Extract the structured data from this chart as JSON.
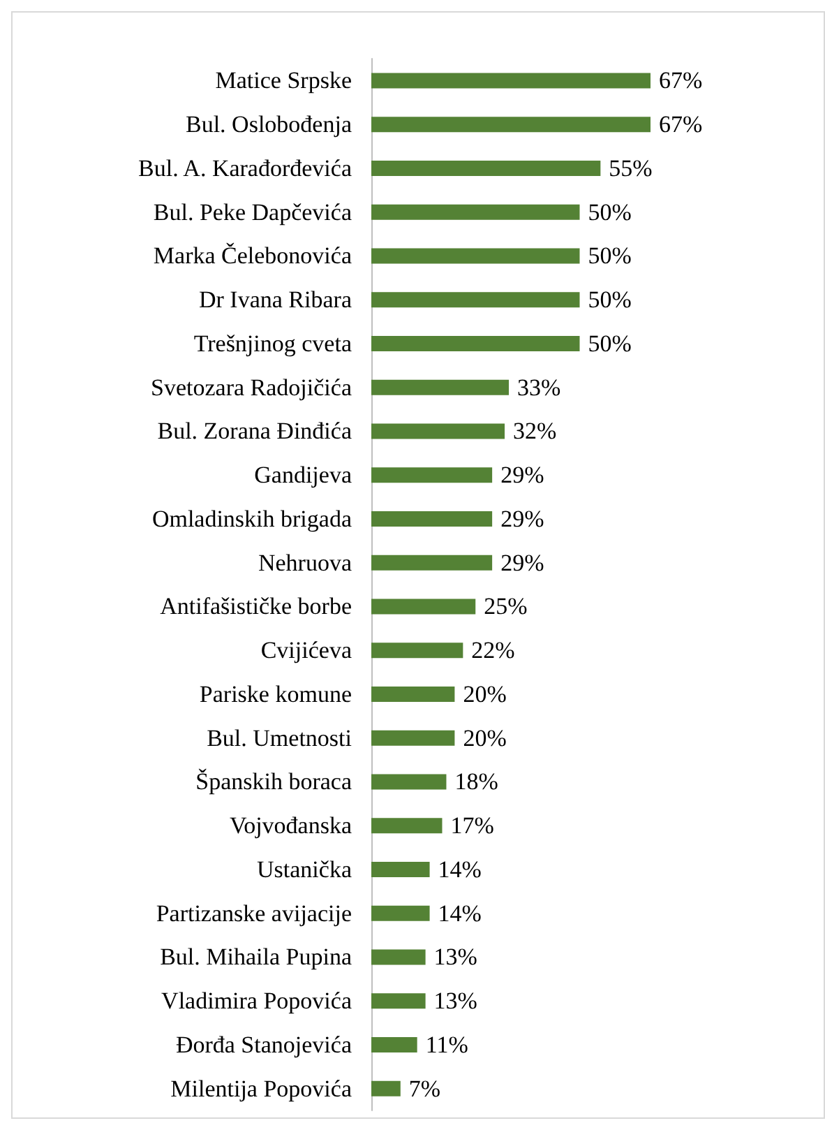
{
  "chart_data": {
    "type": "bar",
    "orientation": "horizontal",
    "categories": [
      "Matice Srpske",
      "Bul. Oslobođenja",
      "Bul. A. Karađorđevića",
      "Bul. Peke Dapčevića",
      "Marka Čelebonovića",
      "Dr Ivana Ribara",
      "Trešnjinog cveta",
      "Svetozara Radojičića",
      "Bul. Zorana Đinđića",
      "Gandijeva",
      "Omladinskih brigada",
      "Nehruova",
      "Antifašističke borbe",
      "Cvijićeva",
      "Pariske komune",
      "Bul. Umetnosti",
      "Španskih boraca",
      "Vojvođanska",
      "Ustanička",
      "Partizanske avijacije",
      "Bul. Mihaila Pupina",
      "Vladimira Popovića",
      "Đorđa Stanojevića",
      "Milentija Popovića"
    ],
    "values": [
      67,
      67,
      55,
      50,
      50,
      50,
      50,
      33,
      32,
      29,
      29,
      29,
      25,
      22,
      20,
      20,
      18,
      17,
      14,
      14,
      13,
      13,
      11,
      7
    ],
    "value_labels": [
      "67%",
      "67%",
      "55%",
      "50%",
      "50%",
      "50%",
      "50%",
      "33%",
      "32%",
      "29%",
      "29%",
      "29%",
      "25%",
      "22%",
      "20%",
      "20%",
      "18%",
      "17%",
      "14%",
      "14%",
      "13%",
      "13%",
      "11%",
      "7%"
    ],
    "color": "#548235"
  }
}
